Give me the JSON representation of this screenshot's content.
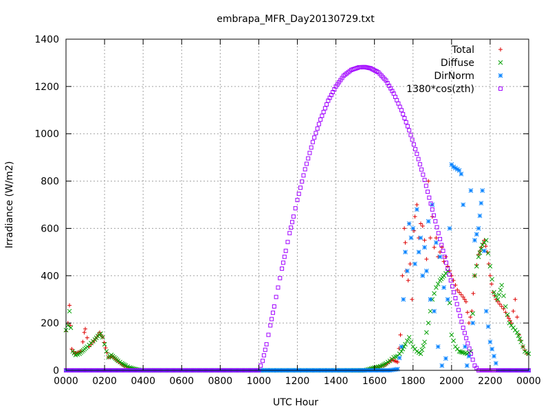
{
  "chart_data": {
    "type": "scatter",
    "title": "embrapa_MFR_Day20130729.txt",
    "xlabel": "UTC Hour",
    "ylabel": "Irradiance (W/m2)",
    "xlim": [
      0,
      24
    ],
    "ylim": [
      0,
      1400
    ],
    "x_ticks": [
      0,
      2,
      4,
      6,
      8,
      10,
      12,
      14,
      16,
      18,
      20,
      22,
      24
    ],
    "x_tick_labels": [
      "0000",
      "0200",
      "0400",
      "0600",
      "0800",
      "1000",
      "1200",
      "1400",
      "1600",
      "1800",
      "2000",
      "2200",
      "0000"
    ],
    "y_ticks": [
      0,
      200,
      400,
      600,
      800,
      1000,
      1200,
      1400
    ],
    "y_tick_labels": [
      "0",
      "200",
      "400",
      "600",
      "800",
      "1000",
      "1200",
      "1400"
    ],
    "grid": true,
    "legend_position": "top-right",
    "series": [
      {
        "name": "Total",
        "color": "#dd0000",
        "marker": "plus",
        "points": [
          [
            0.0,
            165
          ],
          [
            0.1,
            200
          ],
          [
            0.18,
            275
          ],
          [
            0.22,
            190
          ],
          [
            0.3,
            90
          ],
          [
            0.45,
            70
          ],
          [
            0.6,
            75
          ],
          [
            0.8,
            80
          ],
          [
            0.95,
            160
          ],
          [
            1.0,
            175
          ],
          [
            1.2,
            100
          ],
          [
            1.4,
            120
          ],
          [
            1.6,
            140
          ],
          [
            1.75,
            160
          ],
          [
            1.9,
            140
          ],
          [
            2.05,
            95
          ],
          [
            2.2,
            55
          ],
          [
            2.4,
            60
          ],
          [
            2.6,
            45
          ],
          [
            2.9,
            25
          ],
          [
            3.2,
            12
          ],
          [
            3.6,
            5
          ],
          [
            3.9,
            0
          ],
          [
            4.5,
            0
          ],
          [
            6,
            0
          ],
          [
            8,
            0
          ],
          [
            10,
            0
          ],
          [
            12,
            0
          ],
          [
            14,
            0
          ],
          [
            15.5,
            0
          ],
          [
            16.0,
            10
          ],
          [
            16.3,
            15
          ],
          [
            16.6,
            25
          ],
          [
            16.9,
            45
          ],
          [
            17.2,
            35
          ],
          [
            17.35,
            150
          ],
          [
            17.45,
            400
          ],
          [
            17.55,
            600
          ],
          [
            17.6,
            540
          ],
          [
            17.65,
            420
          ],
          [
            17.75,
            380
          ],
          [
            17.8,
            620
          ],
          [
            17.85,
            450
          ],
          [
            17.95,
            300
          ],
          [
            18.05,
            590
          ],
          [
            18.1,
            650
          ],
          [
            18.2,
            700
          ],
          [
            18.3,
            560
          ],
          [
            18.4,
            620
          ],
          [
            18.5,
            610
          ],
          [
            18.6,
            550
          ],
          [
            18.7,
            470
          ],
          [
            18.8,
            800
          ],
          [
            18.9,
            560
          ],
          [
            19.0,
            650
          ],
          [
            19.1,
            520
          ],
          [
            19.2,
            560
          ],
          [
            19.3,
            480
          ],
          [
            19.4,
            500
          ],
          [
            19.5,
            520
          ],
          [
            19.6,
            460
          ],
          [
            19.7,
            480
          ],
          [
            19.8,
            440
          ],
          [
            19.9,
            420
          ],
          [
            20.0,
            400
          ],
          [
            20.1,
            380
          ],
          [
            20.2,
            360
          ],
          [
            20.3,
            340
          ],
          [
            20.4,
            330
          ],
          [
            20.5,
            320
          ],
          [
            20.6,
            310
          ],
          [
            20.75,
            290
          ],
          [
            20.9,
            200
          ],
          [
            21.05,
            250
          ],
          [
            21.2,
            400
          ],
          [
            21.4,
            490
          ],
          [
            21.55,
            520
          ],
          [
            21.7,
            550
          ],
          [
            21.85,
            500
          ],
          [
            22.0,
            400
          ],
          [
            22.15,
            330
          ],
          [
            22.3,
            300
          ],
          [
            22.5,
            280
          ],
          [
            22.7,
            260
          ],
          [
            22.9,
            230
          ],
          [
            23.1,
            200
          ],
          [
            23.3,
            300
          ],
          [
            23.5,
            150
          ],
          [
            23.7,
            100
          ],
          [
            23.9,
            70
          ]
        ]
      },
      {
        "name": "Diffuse",
        "color": "#00a000",
        "marker": "cross",
        "points": [
          [
            0.0,
            170
          ],
          [
            0.1,
            190
          ],
          [
            0.18,
            250
          ],
          [
            0.25,
            180
          ],
          [
            0.35,
            80
          ],
          [
            0.5,
            65
          ],
          [
            0.7,
            70
          ],
          [
            0.9,
            85
          ],
          [
            1.1,
            100
          ],
          [
            1.3,
            115
          ],
          [
            1.5,
            130
          ],
          [
            1.65,
            145
          ],
          [
            1.8,
            155
          ],
          [
            1.9,
            140
          ],
          [
            2.0,
            110
          ],
          [
            2.1,
            80
          ],
          [
            2.2,
            55
          ],
          [
            2.35,
            65
          ],
          [
            2.5,
            55
          ],
          [
            2.7,
            40
          ],
          [
            2.9,
            30
          ],
          [
            3.1,
            20
          ],
          [
            3.3,
            12
          ],
          [
            3.6,
            5
          ],
          [
            3.9,
            0
          ],
          [
            4.5,
            0
          ],
          [
            6,
            0
          ],
          [
            8,
            0
          ],
          [
            10,
            0
          ],
          [
            12,
            0
          ],
          [
            14,
            0
          ],
          [
            15.5,
            0
          ],
          [
            16.0,
            12
          ],
          [
            16.2,
            15
          ],
          [
            16.4,
            20
          ],
          [
            16.6,
            30
          ],
          [
            16.8,
            40
          ],
          [
            17.0,
            55
          ],
          [
            17.2,
            60
          ],
          [
            17.4,
            80
          ],
          [
            17.6,
            110
          ],
          [
            17.8,
            140
          ],
          [
            18.0,
            100
          ],
          [
            18.2,
            80
          ],
          [
            18.4,
            70
          ],
          [
            18.6,
            120
          ],
          [
            18.8,
            200
          ],
          [
            19.0,
            300
          ],
          [
            19.2,
            350
          ],
          [
            19.4,
            380
          ],
          [
            19.6,
            400
          ],
          [
            19.8,
            420
          ],
          [
            20.0,
            150
          ],
          [
            20.2,
            100
          ],
          [
            20.4,
            80
          ],
          [
            20.6,
            75
          ],
          [
            20.8,
            70
          ],
          [
            21.0,
            80
          ],
          [
            21.2,
            400
          ],
          [
            21.4,
            480
          ],
          [
            21.6,
            530
          ],
          [
            21.8,
            550
          ],
          [
            22.0,
            440
          ],
          [
            22.2,
            330
          ],
          [
            22.4,
            300
          ],
          [
            22.6,
            360
          ],
          [
            22.8,
            270
          ],
          [
            23.0,
            200
          ],
          [
            23.2,
            180
          ],
          [
            23.4,
            160
          ],
          [
            23.6,
            120
          ],
          [
            23.8,
            80
          ],
          [
            24.0,
            70
          ]
        ]
      },
      {
        "name": "DirNorm",
        "color": "#0080ff",
        "marker": "star",
        "points": [
          [
            0,
            0
          ],
          [
            2,
            0
          ],
          [
            4,
            0
          ],
          [
            6,
            0
          ],
          [
            8,
            0
          ],
          [
            10,
            0
          ],
          [
            12,
            0
          ],
          [
            14,
            0
          ],
          [
            16.0,
            0
          ],
          [
            16.4,
            0
          ],
          [
            16.8,
            0
          ],
          [
            17.2,
            5
          ],
          [
            17.4,
            100
          ],
          [
            17.5,
            300
          ],
          [
            17.6,
            500
          ],
          [
            17.7,
            420
          ],
          [
            17.8,
            620
          ],
          [
            17.9,
            560
          ],
          [
            18.0,
            600
          ],
          [
            18.1,
            450
          ],
          [
            18.2,
            680
          ],
          [
            18.3,
            500
          ],
          [
            18.4,
            560
          ],
          [
            18.5,
            400
          ],
          [
            18.6,
            520
          ],
          [
            18.7,
            420
          ],
          [
            18.8,
            630
          ],
          [
            18.9,
            300
          ],
          [
            19.0,
            700
          ],
          [
            19.1,
            250
          ],
          [
            19.2,
            540
          ],
          [
            19.3,
            100
          ],
          [
            19.4,
            480
          ],
          [
            19.5,
            20
          ],
          [
            19.6,
            350
          ],
          [
            19.7,
            50
          ],
          [
            19.8,
            300
          ],
          [
            19.9,
            600
          ],
          [
            20.0,
            870
          ],
          [
            20.1,
            860
          ],
          [
            20.2,
            855
          ],
          [
            20.3,
            850
          ],
          [
            20.4,
            845
          ],
          [
            20.5,
            830
          ],
          [
            20.6,
            700
          ],
          [
            20.7,
            100
          ],
          [
            20.8,
            20
          ],
          [
            20.9,
            60
          ],
          [
            21.0,
            760
          ],
          [
            21.1,
            200
          ],
          [
            21.2,
            550
          ],
          [
            21.4,
            600
          ],
          [
            21.6,
            760
          ],
          [
            21.8,
            250
          ],
          [
            22.0,
            120
          ],
          [
            22.2,
            60
          ],
          [
            22.4,
            0
          ],
          [
            23,
            0
          ],
          [
            24,
            0
          ]
        ]
      },
      {
        "name": "1380*cos(zth)",
        "color": "#a000ff",
        "marker": "square",
        "peak_value": 1282,
        "points": [
          [
            0,
            0
          ],
          [
            2,
            0
          ],
          [
            4,
            0
          ],
          [
            6,
            0
          ],
          [
            8,
            0
          ],
          [
            10,
            0
          ],
          [
            10.2,
            40
          ],
          [
            10.4,
            110
          ],
          [
            10.6,
            190
          ],
          [
            10.8,
            270
          ],
          [
            11.0,
            350
          ],
          [
            11.2,
            430
          ],
          [
            11.4,
            505
          ],
          [
            11.6,
            580
          ],
          [
            11.8,
            650
          ],
          [
            12.0,
            720
          ],
          [
            12.4,
            850
          ],
          [
            12.8,
            965
          ],
          [
            13.2,
            1060
          ],
          [
            13.6,
            1140
          ],
          [
            14.0,
            1200
          ],
          [
            14.4,
            1245
          ],
          [
            14.8,
            1270
          ],
          [
            15.2,
            1281
          ],
          [
            15.5,
            1282
          ],
          [
            15.8,
            1277
          ],
          [
            16.2,
            1260
          ],
          [
            16.6,
            1225
          ],
          [
            17.0,
            1170
          ],
          [
            17.4,
            1100
          ],
          [
            17.8,
            1015
          ],
          [
            18.2,
            915
          ],
          [
            18.6,
            805
          ],
          [
            19.0,
            680
          ],
          [
            19.4,
            555
          ],
          [
            19.8,
            430
          ],
          [
            20.2,
            305
          ],
          [
            20.6,
            180
          ],
          [
            21.0,
            70
          ],
          [
            21.2,
            20
          ],
          [
            21.4,
            0
          ],
          [
            22,
            0
          ],
          [
            24,
            0
          ]
        ]
      }
    ]
  }
}
